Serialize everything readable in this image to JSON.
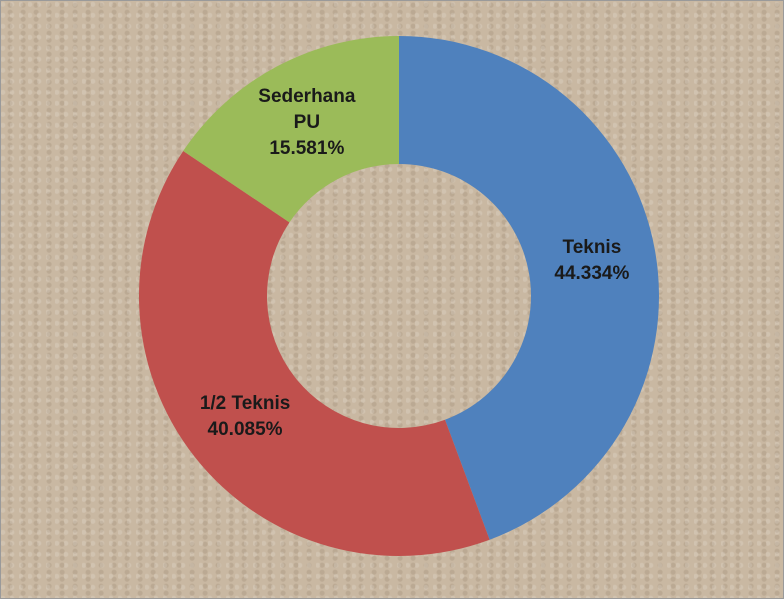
{
  "chart_data": {
    "type": "donut",
    "categories": [
      "Teknis",
      "1/2 Teknis",
      "Sederhana PU"
    ],
    "values": [
      44.334,
      40.085,
      15.581
    ],
    "value_labels": [
      "44.334%",
      "40.085%",
      "15.581%"
    ],
    "colors": [
      "#4f81bd",
      "#c0504d",
      "#9bbb59"
    ]
  }
}
